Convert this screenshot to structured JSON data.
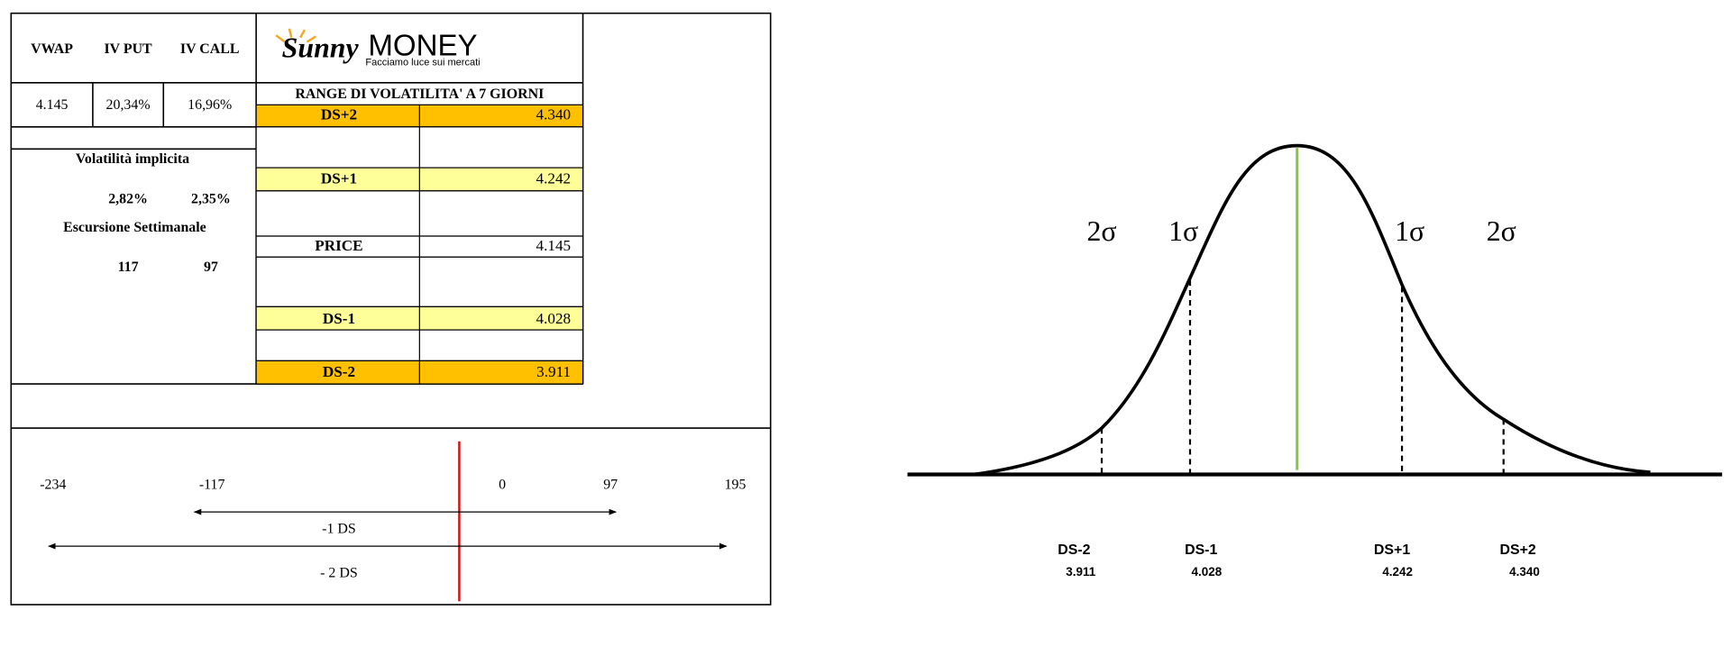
{
  "header": {
    "columns": [
      "VWAP",
      "IV PUT",
      "IV CALL"
    ],
    "values": [
      "4.145",
      "20,34%",
      "16,96%"
    ]
  },
  "logo": {
    "brand": "Sunny",
    "name": "MONEY",
    "tagline": "Facciamo luce sui mercati"
  },
  "volatility": {
    "title": "Volatilità implicita",
    "values": [
      "2,82%",
      "2,35%"
    ]
  },
  "excursion": {
    "title": "Escursione Settimanale",
    "values": [
      "117",
      "97"
    ]
  },
  "range": {
    "title": "RANGE DI VOLATILITA' A 7 GIORNI",
    "rows": [
      [
        "DS+2",
        "4.340"
      ],
      [
        "DS+1",
        "4.242"
      ],
      [
        "PRICE",
        "4.145"
      ],
      [
        "DS-1",
        "4.028"
      ],
      [
        "DS-2",
        "3.911"
      ]
    ]
  },
  "scale": {
    "ticks": [
      "-234",
      "-117",
      "0",
      "97",
      "195"
    ],
    "arrows": [
      "-1 DS",
      "- 2 DS"
    ]
  },
  "bell": {
    "sigma_labels": [
      "2σ",
      "1σ",
      "1σ",
      "2σ"
    ],
    "levels": [
      [
        "DS-2",
        "3.911"
      ],
      [
        "DS-1",
        "4.028"
      ],
      [
        "DS+1",
        "4.242"
      ],
      [
        "DS+2",
        "4.340"
      ]
    ]
  }
}
